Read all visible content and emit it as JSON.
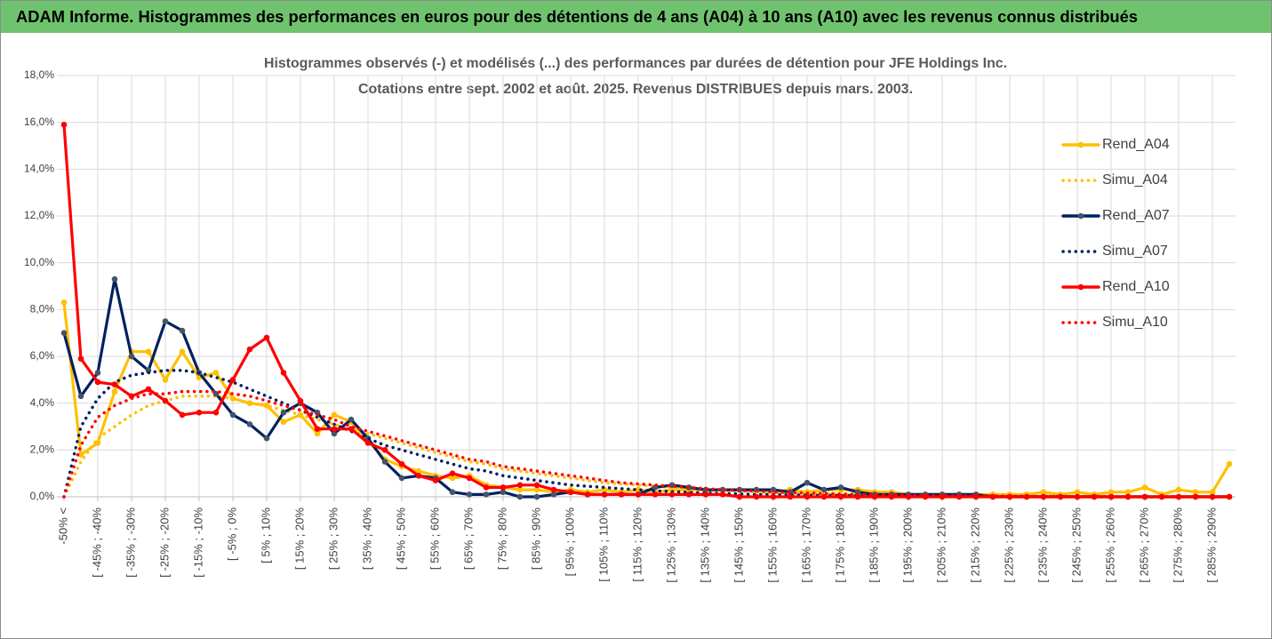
{
  "page_title": "ADAM Informe. Histogrammes des performances en euros pour des détentions de 4 ans (A04) à 10 ans (A10) avec les revenus connus distribués",
  "chart_data": {
    "type": "line",
    "title": "Histogrammes observés (-) et modélisés (...) des performances par durées de détention pour JFE Holdings Inc.",
    "subtitle": "Cotations entre sept. 2002 et août. 2025. Revenus DISTRIBUES depuis mars. 2003.",
    "categories": [
      "-50% <",
      null,
      "[ -45% ; -40%",
      null,
      "[ -35% ; -30%",
      null,
      "[ -25% ; -20%",
      null,
      "[ -15% ; -10%",
      null,
      "[ -5% ; 0%",
      null,
      "[ 5% ; 10%",
      null,
      "[ 15% ; 20%",
      null,
      "[ 25% ; 30%",
      null,
      "[ 35% ; 40%",
      null,
      "[ 45% ; 50%",
      null,
      "[ 55% ; 60%",
      null,
      "[ 65% ; 70%",
      null,
      "[ 75% ; 80%",
      null,
      "[ 85% ; 90%",
      null,
      "[ 95% ; 100%",
      null,
      "[ 105% ; 110%",
      null,
      "[ 115% ; 120%",
      null,
      "[ 125% ; 130%",
      null,
      "[ 135% ; 140%",
      null,
      "[ 145% ; 150%",
      null,
      "[ 155% ; 160%",
      null,
      "[ 165% ; 170%",
      null,
      "[ 175% ; 180%",
      null,
      "[ 185% ; 190%",
      null,
      "[ 195% ; 200%",
      null,
      "[ 205% ; 210%",
      null,
      "[ 215% ; 220%",
      null,
      "[ 225% ; 230%",
      null,
      "[ 235% ; 240%",
      null,
      "[ 245% ; 250%",
      null,
      "[ 255% ; 260%",
      null,
      "[ 265% ; 270%",
      null,
      "[ 275% ; 280%",
      null,
      "[ 285% ; 290%",
      null
    ],
    "series": [
      {
        "name": "Rend_A04",
        "color": "#FFC000",
        "style": "solid",
        "markers": true,
        "values": [
          8.3,
          1.8,
          2.3,
          4.5,
          6.2,
          6.2,
          5.0,
          6.2,
          5.1,
          5.3,
          4.2,
          4.0,
          3.9,
          3.2,
          3.5,
          2.7,
          3.5,
          3.2,
          2.4,
          1.6,
          1.3,
          1.1,
          0.9,
          0.8,
          0.9,
          0.5,
          0.4,
          0.3,
          0.3,
          0.2,
          0.3,
          0.2,
          0.3,
          0.2,
          0.3,
          0.2,
          0.3,
          0.3,
          0.3,
          0.3,
          0.3,
          0.3,
          0.2,
          0.3,
          0.2,
          0.3,
          0.3,
          0.3,
          0.2,
          0.2,
          0.1,
          0.1,
          0.1,
          0.1,
          0.1,
          0.1,
          0.1,
          0.1,
          0.2,
          0.1,
          0.2,
          0.1,
          0.2,
          0.2,
          0.4,
          0.1,
          0.3,
          0.2,
          0.2,
          1.4
        ]
      },
      {
        "name": "Simu_A04",
        "color": "#FFC000",
        "style": "dotted",
        "markers": false,
        "values": [
          0,
          1.5,
          2.5,
          3.0,
          3.5,
          3.9,
          4.1,
          4.3,
          4.3,
          4.3,
          4.2,
          4.0,
          3.9,
          3.7,
          3.5,
          3.3,
          3.1,
          2.9,
          2.7,
          2.5,
          2.3,
          2.1,
          1.9,
          1.7,
          1.5,
          1.4,
          1.2,
          1.1,
          1.0,
          0.9,
          0.8,
          0.7,
          0.6,
          0.55,
          0.5,
          0.45,
          0.4,
          0.35,
          0.3,
          0.27,
          0.24,
          0.21,
          0.19,
          0.17,
          0.15,
          0.13,
          0.12,
          0.1,
          0.09,
          0.08,
          0.07,
          0.06,
          0.05,
          0.05,
          0.04,
          0.04,
          0.03,
          0.03,
          0.03,
          0.02,
          0.02,
          0.02,
          0.02,
          0.01,
          0.01,
          0.01,
          0.01,
          0.01,
          0.01,
          0.01
        ]
      },
      {
        "name": "Rend_A07",
        "color": "#002060",
        "marker_color": "#44546A",
        "style": "solid",
        "markers": true,
        "values": [
          7.0,
          4.3,
          5.3,
          9.3,
          6.0,
          5.4,
          7.5,
          7.1,
          5.3,
          4.4,
          3.5,
          3.1,
          2.5,
          3.6,
          4.0,
          3.6,
          2.7,
          3.3,
          2.5,
          1.5,
          0.8,
          0.9,
          0.8,
          0.2,
          0.1,
          0.1,
          0.2,
          0,
          0,
          0.1,
          0.2,
          0.1,
          0.1,
          0.1,
          0.1,
          0.4,
          0.5,
          0.4,
          0.3,
          0.3,
          0.3,
          0.3,
          0.3,
          0.2,
          0.6,
          0.3,
          0.4,
          0.2,
          0.1,
          0.1,
          0.1,
          0.1,
          0.1,
          0.1,
          0.1,
          0,
          0,
          0,
          0,
          0,
          0,
          0,
          0,
          0,
          0,
          0,
          0,
          0,
          0,
          0
        ]
      },
      {
        "name": "Simu_A07",
        "color": "#002060",
        "style": "dotted",
        "markers": false,
        "values": [
          0,
          3.0,
          4.2,
          4.9,
          5.2,
          5.3,
          5.4,
          5.4,
          5.3,
          5.1,
          4.9,
          4.6,
          4.3,
          4.0,
          3.7,
          3.4,
          3.1,
          2.8,
          2.5,
          2.2,
          2.0,
          1.8,
          1.6,
          1.4,
          1.2,
          1.1,
          0.9,
          0.8,
          0.7,
          0.6,
          0.5,
          0.45,
          0.4,
          0.35,
          0.3,
          0.25,
          0.22,
          0.19,
          0.16,
          0.14,
          0.12,
          0.1,
          0.09,
          0.08,
          0.07,
          0.06,
          0.05,
          0.04,
          0.04,
          0.03,
          0.03,
          0.02,
          0.02,
          0.02,
          0.01,
          0.01,
          0.01,
          0.01,
          0.01,
          0.01,
          0.01,
          0,
          0,
          0,
          0,
          0,
          0,
          0,
          0,
          0
        ]
      },
      {
        "name": "Rend_A10",
        "color": "#FF0000",
        "style": "solid",
        "markers": true,
        "values": [
          15.9,
          5.9,
          4.9,
          4.8,
          4.3,
          4.6,
          4.1,
          3.5,
          3.6,
          3.6,
          5.0,
          6.3,
          6.8,
          5.3,
          4.1,
          2.9,
          2.9,
          2.9,
          2.3,
          2.0,
          1.4,
          0.9,
          0.7,
          1.0,
          0.8,
          0.4,
          0.4,
          0.5,
          0.5,
          0.3,
          0.2,
          0.1,
          0.1,
          0.1,
          0.1,
          0.1,
          0.1,
          0.1,
          0.1,
          0.1,
          0,
          0,
          0,
          0,
          0,
          0,
          0,
          0,
          0,
          0,
          0,
          0,
          0,
          0,
          0,
          0,
          0,
          0,
          0,
          0,
          0,
          0,
          0,
          0,
          0,
          0,
          0,
          0,
          0,
          0
        ]
      },
      {
        "name": "Simu_A10",
        "color": "#FF0000",
        "style": "dotted",
        "markers": false,
        "values": [
          0,
          2.2,
          3.4,
          3.9,
          4.2,
          4.4,
          4.4,
          4.5,
          4.5,
          4.5,
          4.4,
          4.3,
          4.1,
          3.9,
          3.7,
          3.5,
          3.3,
          3.0,
          2.8,
          2.6,
          2.4,
          2.2,
          2.0,
          1.8,
          1.6,
          1.5,
          1.3,
          1.2,
          1.1,
          1.0,
          0.9,
          0.8,
          0.7,
          0.6,
          0.55,
          0.5,
          0.45,
          0.4,
          0.35,
          0.3,
          0.27,
          0.24,
          0.2,
          0.18,
          0.16,
          0.14,
          0.12,
          0.1,
          0.09,
          0.08,
          0.07,
          0.06,
          0.05,
          0.05,
          0.04,
          0.04,
          0.03,
          0.03,
          0.02,
          0.02,
          0.02,
          0.02,
          0.01,
          0.01,
          0.01,
          0.01,
          0.01,
          0.01,
          0.01,
          0.01
        ]
      }
    ],
    "ylim": [
      0,
      18
    ],
    "yticks": [
      {
        "value": 0,
        "label": "0,0%"
      },
      {
        "value": 2,
        "label": "2,0%"
      },
      {
        "value": 4,
        "label": "4,0%"
      },
      {
        "value": 6,
        "label": "6,0%"
      },
      {
        "value": 8,
        "label": "8,0%"
      },
      {
        "value": 10,
        "label": "10,0%"
      },
      {
        "value": 12,
        "label": "12,0%"
      },
      {
        "value": 14,
        "label": "14,0%"
      },
      {
        "value": 16,
        "label": "16,0%"
      },
      {
        "value": 18,
        "label": "18,0%"
      }
    ],
    "grid": true,
    "legend": "right"
  }
}
